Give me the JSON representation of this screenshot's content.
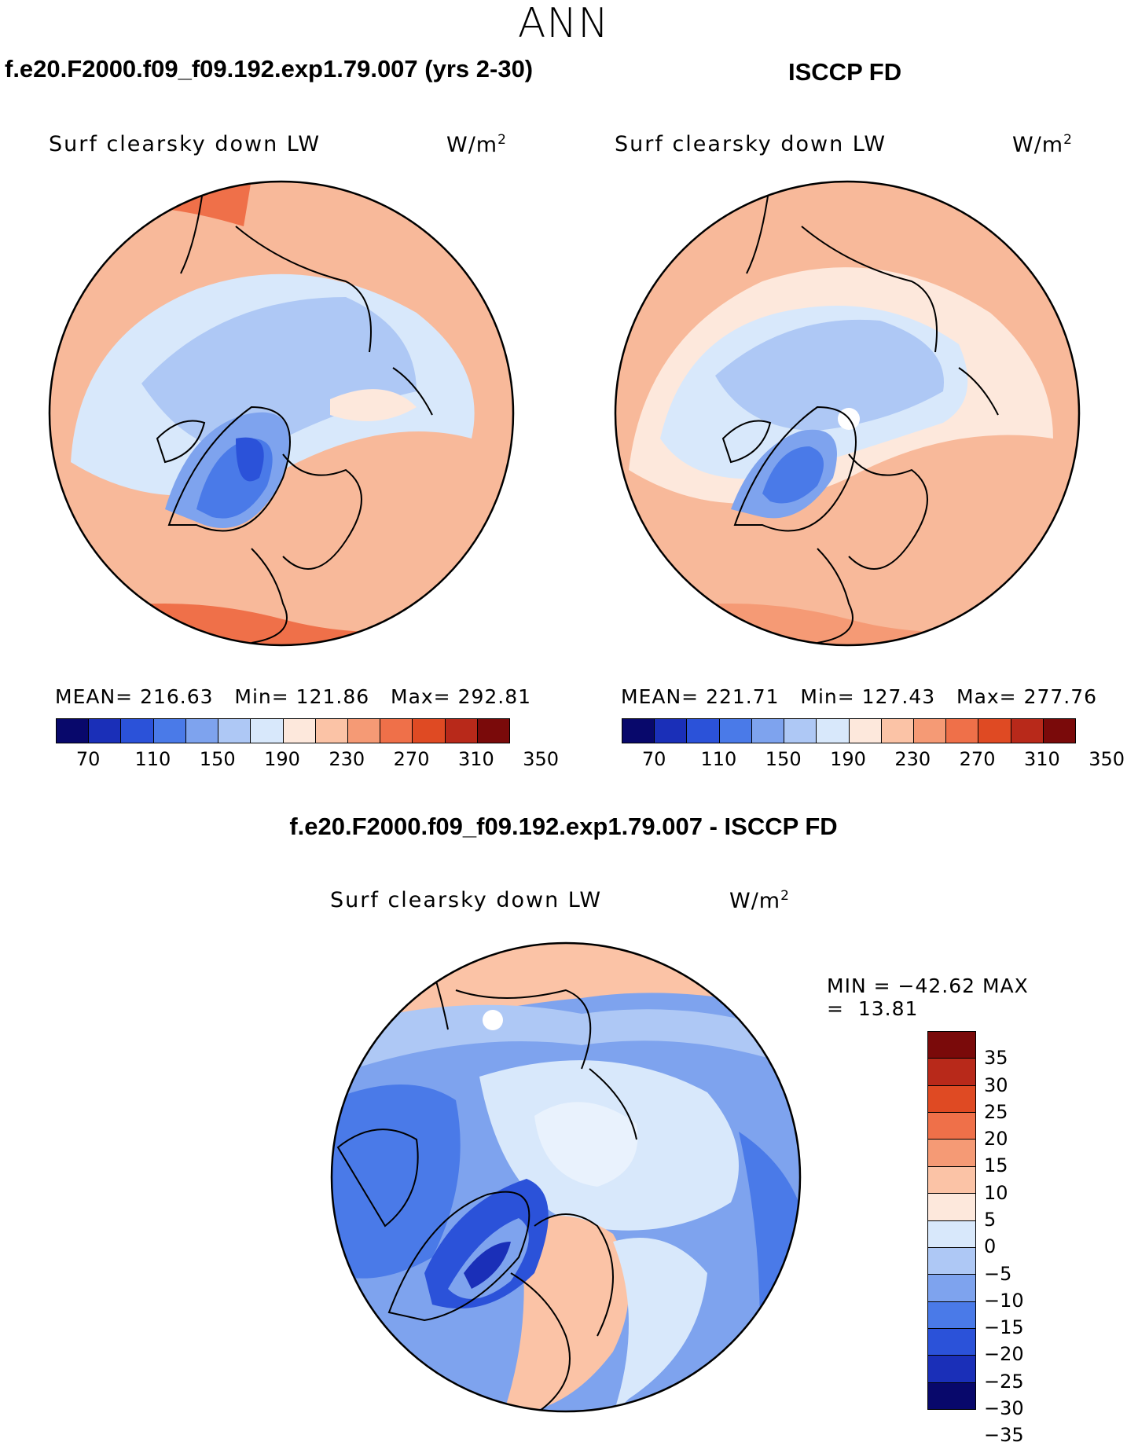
{
  "title": "ANN",
  "panels": {
    "model": {
      "case_title": "f.e20.F2000.f09_f09.192.exp1.79.007 (yrs 2-30)",
      "field": "Surf clearsky down LW",
      "units_base": "W/m",
      "units_exp": "2",
      "mean_label": "MEAN=",
      "mean": "216.63",
      "min_label": "Min=",
      "min": "121.86",
      "max_label": "Max=",
      "max": "292.81"
    },
    "obs": {
      "case_title": "ISCCP FD",
      "field": "Surf clearsky down LW",
      "units_base": "W/m",
      "units_exp": "2",
      "mean_label": "MEAN=",
      "mean": "221.71",
      "min_label": "Min=",
      "min": "127.43",
      "max_label": "Max=",
      "max": "277.76"
    },
    "diff": {
      "case_title": "f.e20.F2000.f09_f09.192.exp1.79.007 - ISCCP FD",
      "field": "Surf clearsky down LW",
      "units_base": "W/m",
      "units_exp": "2",
      "min_label": "MIN =",
      "min": "−42.62",
      "max_label": "MAX =",
      "max": "13.81"
    }
  },
  "colorbar_abs": {
    "colors": [
      "#08086b",
      "#1a2fb8",
      "#2b52d9",
      "#4a7ae8",
      "#7ea3ee",
      "#aec8f5",
      "#d8e8fb",
      "#fde8dc",
      "#fbc3a6",
      "#f59a75",
      "#ef7049",
      "#df4a23",
      "#b8291a",
      "#7a0a0a"
    ],
    "tick_labels": [
      "70",
      "110",
      "150",
      "190",
      "230",
      "270",
      "310",
      "350"
    ]
  },
  "colorbar_diff": {
    "colors": [
      "#7a0a0a",
      "#b8291a",
      "#df4a23",
      "#ef7049",
      "#f59a75",
      "#fbc3a6",
      "#fde8dc",
      "#d8e8fb",
      "#aec8f5",
      "#7ea3ee",
      "#4a7ae8",
      "#2b52d9",
      "#1a2fb8",
      "#08086b"
    ],
    "tick_labels": [
      "35",
      "30",
      "25",
      "20",
      "15",
      "10",
      "5",
      "0",
      "−5",
      "−10",
      "−15",
      "−20",
      "−25",
      "−30",
      "−35"
    ]
  }
}
